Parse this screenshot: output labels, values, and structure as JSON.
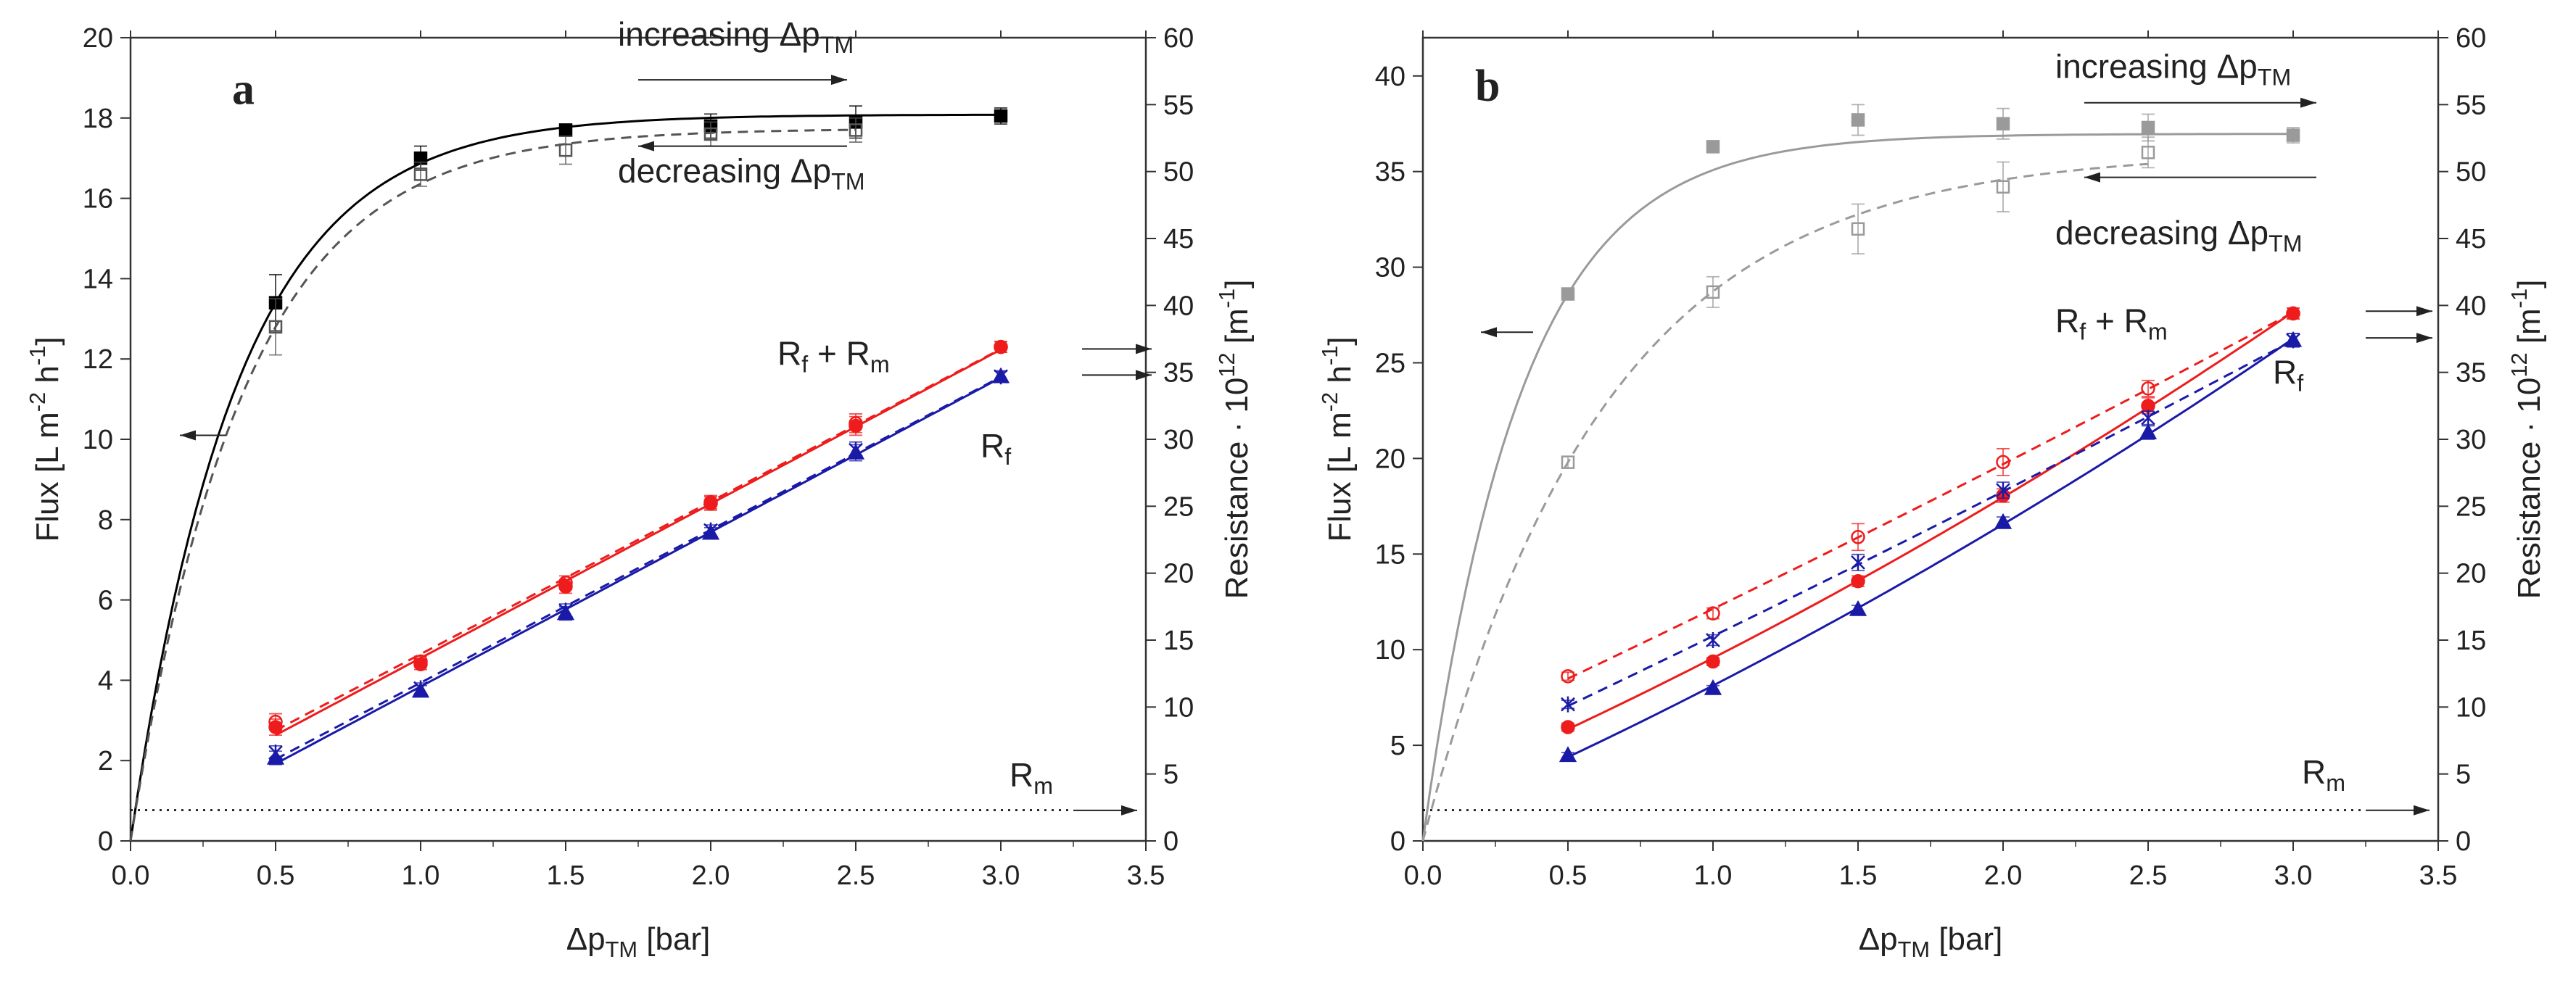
{
  "chart_data": [
    {
      "type": "line",
      "panel_label": "a",
      "xlabel": "Δp_TM [bar]",
      "ylabel_left": "Flux [L m^-2 h^-1]",
      "ylabel_right": "Resistance · 10^12 [m^-1]",
      "xlim": [
        0,
        3.5
      ],
      "ylim_left": [
        0,
        20
      ],
      "ylim_right": [
        0,
        60
      ],
      "x_ticks": [
        "0.0",
        "0.5",
        "1.0",
        "1.5",
        "2.0",
        "2.5",
        "3.0",
        "3.5"
      ],
      "y_left_ticks": [
        "0",
        "2",
        "4",
        "6",
        "8",
        "10",
        "12",
        "14",
        "16",
        "18",
        "20"
      ],
      "y_right_ticks": [
        "0",
        "5",
        "10",
        "15",
        "20",
        "25",
        "30",
        "35",
        "40",
        "45",
        "50",
        "55",
        "60"
      ],
      "annotations": {
        "increasing": "increasing Δp_TM",
        "decreasing": "decreasing Δp_TM",
        "rf_rm": "R_f + R_m",
        "rf": "R_f",
        "rm": "R_m"
      },
      "grid": false,
      "series": [
        {
          "name": "Flux, increasing Δp_TM",
          "axis": "left",
          "color": "#000000",
          "x": [
            0.5,
            1.0,
            1.5,
            2.0,
            2.5,
            3.0
          ],
          "y": [
            13.4,
            17.0,
            17.7,
            17.8,
            17.9,
            18.05
          ],
          "err": [
            0.7,
            0.3,
            0.15,
            0.3,
            0.4,
            0.2
          ]
        },
        {
          "name": "Flux, decreasing Δp_TM",
          "axis": "left",
          "color": "#555555",
          "x": [
            0.5,
            1.0,
            1.5,
            2.0,
            2.5
          ],
          "y": [
            12.8,
            16.6,
            17.2,
            17.6,
            17.7
          ],
          "err": [
            0.7,
            0.3,
            0.35,
            0.3,
            0.3
          ]
        },
        {
          "name": "R_f + R_m, increasing",
          "axis": "right",
          "color": "#ee1c1c",
          "x": [
            0.5,
            1.0,
            1.5,
            2.0,
            2.5,
            3.0
          ],
          "y": [
            8.5,
            13.2,
            19.0,
            25.2,
            31.0,
            36.9
          ],
          "err": [
            0.6,
            0.4,
            0.5,
            0.5,
            0.7,
            0.4
          ]
        },
        {
          "name": "R_f + R_m, decreasing",
          "axis": "right",
          "color": "#ee1c1c",
          "x": [
            0.5,
            1.0,
            1.5,
            2.0,
            2.5,
            3.0
          ],
          "y": [
            8.9,
            13.4,
            19.3,
            25.3,
            31.2,
            36.9
          ],
          "err": [
            0.6,
            0.4,
            0.5,
            0.5,
            0.7,
            0.4
          ]
        },
        {
          "name": "R_f, increasing",
          "axis": "right",
          "color": "#1a1aa8",
          "x": [
            0.5,
            1.0,
            1.5,
            2.0,
            2.5,
            3.0
          ],
          "y": [
            6.2,
            11.2,
            17.0,
            23.0,
            29.0,
            34.7
          ],
          "err": [
            0.5,
            0.4,
            0.5,
            0.4,
            0.6,
            0.4
          ]
        },
        {
          "name": "R_f, decreasing",
          "axis": "right",
          "color": "#1a1aa8",
          "x": [
            0.5,
            1.0,
            1.5,
            2.0,
            2.5,
            3.0
          ],
          "y": [
            6.6,
            11.4,
            17.2,
            23.2,
            29.2,
            34.7
          ],
          "err": [
            0.5,
            0.4,
            0.5,
            0.4,
            0.6,
            0.4
          ]
        },
        {
          "name": "R_m",
          "axis": "right",
          "color": "#000000",
          "x": [
            0.0,
            3.25
          ],
          "y": [
            2.3,
            2.3
          ]
        }
      ]
    },
    {
      "type": "line",
      "panel_label": "b",
      "xlabel": "Δp_TM [bar]",
      "ylabel_left": "Flux [L m^-2 h^-1]",
      "ylabel_right": "Resistance · 10^12 [m^-1]",
      "xlim": [
        0,
        3.5
      ],
      "ylim_left": [
        0,
        42
      ],
      "ylim_right": [
        0,
        60
      ],
      "x_ticks": [
        "0.0",
        "0.5",
        "1.0",
        "1.5",
        "2.0",
        "2.5",
        "3.0",
        "3.5"
      ],
      "y_left_ticks": [
        "0",
        "5",
        "10",
        "15",
        "20",
        "25",
        "30",
        "35",
        "40"
      ],
      "y_right_ticks": [
        "0",
        "5",
        "10",
        "15",
        "20",
        "25",
        "30",
        "35",
        "40",
        "45",
        "50",
        "55",
        "60"
      ],
      "annotations": {
        "increasing": "increasing Δp_TM",
        "decreasing": "decreasing Δp_TM",
        "rf_rm": "R_f + R_m",
        "rf": "R_f",
        "rm": "R_m"
      },
      "grid": false,
      "series": [
        {
          "name": "Flux, increasing Δp_TM",
          "axis": "left",
          "color": "#9a9a9a",
          "x": [
            0.5,
            1.0,
            1.5,
            2.0,
            2.5,
            3.0
          ],
          "y": [
            28.6,
            36.3,
            37.7,
            37.5,
            37.3,
            36.9
          ],
          "err": [
            0.3,
            0.2,
            0.8,
            0.8,
            0.7,
            0.4
          ]
        },
        {
          "name": "Flux, decreasing Δp_TM",
          "axis": "left",
          "color": "#9a9a9a",
          "x": [
            0.5,
            1.0,
            1.5,
            2.0,
            2.5
          ],
          "y": [
            19.8,
            28.7,
            32.0,
            34.2,
            36.0
          ],
          "err": [
            0.3,
            0.8,
            1.3,
            1.3,
            0.8
          ]
        },
        {
          "name": "R_f + R_m, increasing",
          "axis": "right",
          "color": "#ee1c1c",
          "x": [
            0.5,
            1.0,
            1.5,
            2.0,
            2.5,
            3.0
          ],
          "y": [
            8.5,
            13.4,
            19.4,
            25.8,
            32.5,
            39.4
          ],
          "err": [
            0.3,
            0.3,
            0.4,
            0.5,
            0.6,
            0.4
          ]
        },
        {
          "name": "R_f + R_m, decreasing",
          "axis": "right",
          "color": "#ee1c1c",
          "x": [
            0.5,
            1.0,
            1.5,
            2.0,
            2.5,
            3.0
          ],
          "y": [
            12.3,
            17.0,
            22.7,
            28.3,
            33.8,
            39.4
          ],
          "err": [
            0.3,
            0.4,
            1.0,
            1.0,
            0.6,
            0.4
          ]
        },
        {
          "name": "R_f, increasing",
          "axis": "right",
          "color": "#1a1aa8",
          "x": [
            0.5,
            1.0,
            1.5,
            2.0,
            2.5,
            3.0
          ],
          "y": [
            6.4,
            11.4,
            17.3,
            23.8,
            30.5,
            37.4
          ],
          "err": [
            0.2,
            0.2,
            0.3,
            0.4,
            0.5,
            0.5
          ]
        },
        {
          "name": "R_f, decreasing",
          "axis": "right",
          "color": "#1a1aa8",
          "x": [
            0.5,
            1.0,
            1.5,
            2.0,
            2.5,
            3.0
          ],
          "y": [
            10.2,
            15.0,
            20.8,
            26.2,
            31.6,
            37.4
          ],
          "err": [
            0.3,
            0.4,
            0.6,
            0.6,
            0.5,
            0.5
          ]
        },
        {
          "name": "R_m",
          "axis": "right",
          "color": "#000000",
          "x": [
            0.0,
            3.25
          ],
          "y": [
            2.3,
            2.3
          ]
        }
      ]
    }
  ]
}
